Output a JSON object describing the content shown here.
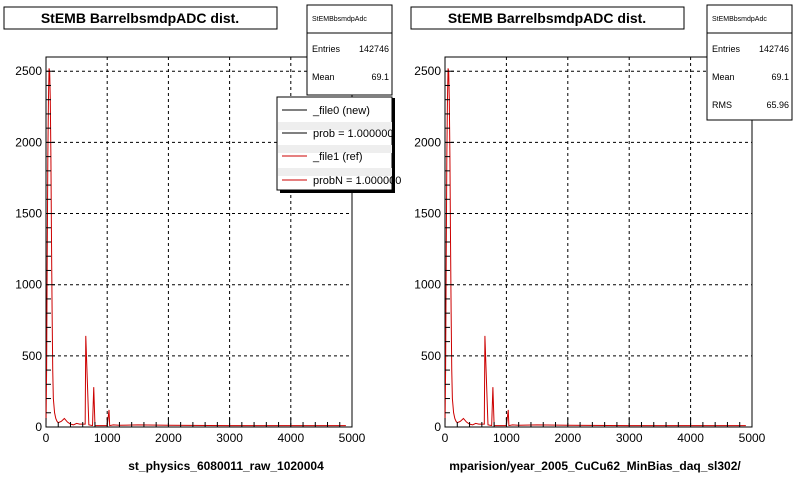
{
  "colors": {
    "new": "#000000",
    "ref": "#cc0000",
    "grid": "#000000",
    "frame": "#000000"
  },
  "panels": [
    {
      "title": "StEMB BarrelbsmdpADC dist.",
      "xlabel": "st_physics_6080011_raw_1020004",
      "stats": {
        "name": "StEMBbsmdpAdc",
        "rows": [
          {
            "label": "Entries",
            "value": "142746"
          },
          {
            "label": "Mean",
            "value": "69.1"
          }
        ]
      },
      "legend": {
        "entries": [
          {
            "text": "_file0 (new)",
            "color": "#000000"
          },
          {
            "text": "prob = 1.000000",
            "color": "#000000"
          },
          {
            "text": "_file1 (ref)",
            "color": "#cc0000"
          },
          {
            "text": "probN = 1.000000",
            "color": "#cc0000"
          }
        ]
      }
    },
    {
      "title": "StEMB BarrelbsmdpADC dist.",
      "xlabel": "mparision/year_2005_CuCu62_MinBias_daq_sl302/",
      "stats": {
        "name": "StEMBbsmdpAdc",
        "rows": [
          {
            "label": "Entries",
            "value": "142746"
          },
          {
            "label": "Mean",
            "value": "69.1"
          },
          {
            "label": "RMS",
            "value": "65.96"
          }
        ]
      }
    }
  ],
  "chart_data": [
    {
      "type": "line",
      "xlim": [
        0,
        5000
      ],
      "ylim": [
        0,
        2600
      ],
      "xticks": [
        "0",
        "1000",
        "2000",
        "3000",
        "4000",
        "5000"
      ],
      "yticks": [
        "0",
        "500",
        "1000",
        "1500",
        "2000",
        "2500"
      ],
      "grid": true,
      "legend_position": "top-right",
      "series": [
        {
          "name": "_file1 (ref)",
          "x": [
            0,
            10,
            20,
            30,
            40,
            50,
            60,
            70,
            80,
            90,
            100,
            110,
            120,
            140,
            160,
            180,
            200,
            250,
            300,
            350,
            400,
            450,
            500,
            550,
            600,
            640,
            650,
            700,
            760,
            780,
            800,
            900,
            1000,
            1030,
            1040,
            1100,
            1200,
            1500,
            2000,
            3000,
            4000,
            4900
          ],
          "y": [
            0,
            400,
            1200,
            1900,
            2300,
            2520,
            2500,
            2300,
            1900,
            1300,
            800,
            400,
            200,
            100,
            60,
            40,
            30,
            40,
            60,
            35,
            20,
            15,
            25,
            20,
            20,
            20,
            640,
            15,
            10,
            280,
            10,
            10,
            10,
            120,
            10,
            15,
            12,
            15,
            12,
            10,
            10,
            10
          ]
        }
      ]
    },
    {
      "type": "line",
      "xlim": [
        0,
        5000
      ],
      "ylim": [
        0,
        2600
      ],
      "xticks": [
        "0",
        "1000",
        "2000",
        "3000",
        "4000",
        "5000"
      ],
      "yticks": [
        "0",
        "500",
        "1000",
        "1500",
        "2000",
        "2500"
      ],
      "grid": true,
      "series": [
        {
          "x": [
            0,
            10,
            20,
            30,
            40,
            50,
            60,
            70,
            80,
            90,
            100,
            110,
            120,
            140,
            160,
            180,
            200,
            250,
            300,
            350,
            400,
            450,
            500,
            550,
            600,
            640,
            650,
            700,
            760,
            780,
            800,
            900,
            1000,
            1030,
            1040,
            1100,
            1200,
            1500,
            2000,
            3000,
            4000,
            4900
          ],
          "y": [
            0,
            400,
            1200,
            1900,
            2300,
            2520,
            2500,
            2300,
            1900,
            1300,
            800,
            400,
            200,
            100,
            60,
            40,
            30,
            40,
            60,
            35,
            20,
            15,
            25,
            20,
            20,
            20,
            640,
            15,
            10,
            280,
            10,
            10,
            10,
            120,
            10,
            15,
            12,
            15,
            12,
            10,
            10,
            10
          ]
        }
      ]
    }
  ]
}
